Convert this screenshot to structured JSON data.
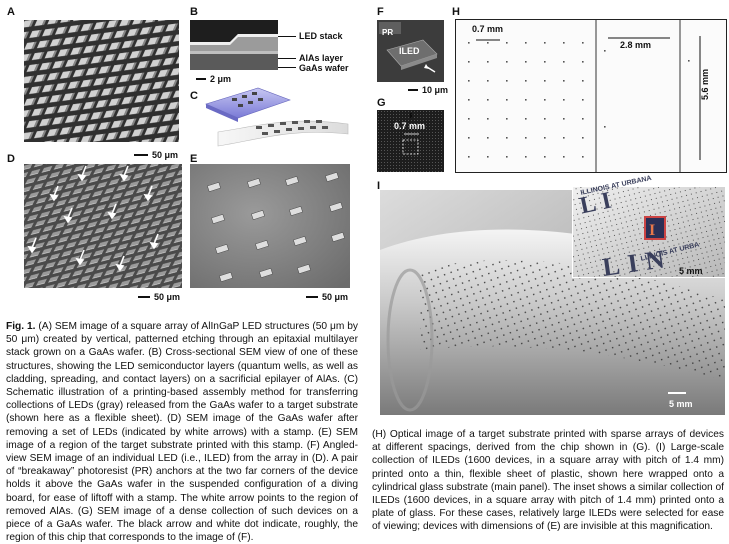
{
  "labels": {
    "A": "A",
    "B": "B",
    "C": "C",
    "D": "D",
    "E": "E",
    "F": "F",
    "G": "G",
    "H": "H",
    "I": "I"
  },
  "panel_b": {
    "annotations": [
      "LED stack",
      "AlAs layer",
      "GaAs wafer"
    ],
    "scale": "2 μm"
  },
  "panel_a": {
    "scale": "50 μm"
  },
  "panel_d": {
    "scale": "50 μm"
  },
  "panel_e": {
    "scale": "50 μm"
  },
  "panel_f": {
    "pr": "PR",
    "iled": "ILED",
    "scale": "10 μm"
  },
  "panel_g": {
    "pitch": "0.7 mm"
  },
  "panel_h": {
    "pitch_left": "0.7 mm",
    "pitch_right": "2.8 mm",
    "height": "5.6 mm"
  },
  "panel_i": {
    "scale_main": "5 mm",
    "scale_inset": "5 mm",
    "inset_text_top": "ILLINOIS AT URBANA",
    "inset_text_bottom": "LLINOIS AT URBA"
  },
  "caption_left": {
    "fig": "Fig. 1.",
    "text": " (A) SEM image of a square array of AlInGaP LED structures (50 μm by 50 μm) created by vertical, patterned etching through an epitaxial multilayer stack grown on a GaAs wafer. (B) Cross-sectional SEM view of one of these structures, showing the LED semiconductor layers (quantum wells, as well as cladding, spreading, and contact layers) on a sacrificial epilayer of AlAs. (C) Schematic illustration of a printing-based assembly method for transferring collections of LEDs (gray) released from the GaAs wafer to a target substrate (shown here as a flexible sheet). (D) SEM image of the GaAs wafer after removing a set of LEDs (indicated by white arrows) with a stamp. (E) SEM image of a region of the target substrate printed with this stamp. (F) Angled-view SEM image of an individual LED (i.e., ILED) from the array in (D). A pair of “breakaway” photoresist (PR) anchors at the two far corners of the device holds it above the GaAs wafer in the suspended configuration of a diving board, for ease of liftoff with a stamp. The white arrow points to the region of removed AlAs. (G) SEM image of a dense collection of such devices on a piece of a GaAs wafer. The black arrow and white dot indicate, roughly, the region of this chip that corresponds to the image of (F)."
  },
  "caption_right": {
    "text": "(H) Optical image of a target substrate printed with sparse arrays of devices at different spacings, derived from the chip shown in (G). (I) Large-scale collection of ILEDs (1600 devices, in a square array with pitch of 1.4 mm) printed onto a thin, flexible sheet of plastic, shown here wrapped onto a cylindrical glass substrate (main panel). The inset shows a similar collection of ILEDs (1600 devices, in a square array with pitch of 1.4 mm) printed onto a plate of glass. For these cases, relatively large ILEDs were selected for ease of viewing; devices with dimensions of (E) are invisible at this magnification."
  }
}
